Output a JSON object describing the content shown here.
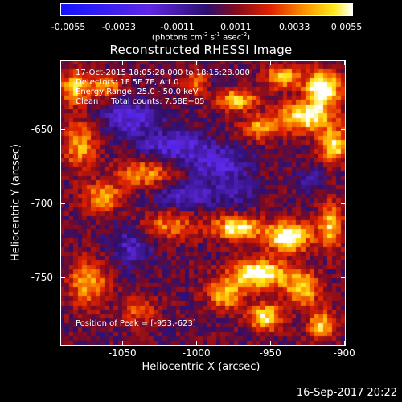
{
  "colorbar": {
    "min": -0.0055,
    "max": 0.0055,
    "ticks": [
      "-0.0055",
      "-0.0033",
      "-0.0011",
      "0.0011",
      "0.0033",
      "0.0055"
    ],
    "units": {
      "pre": "(photons cm",
      "e1": "-2",
      "mid1": " s",
      "e2": "-1",
      "mid2": " asec",
      "e3": "-2",
      "post": ")"
    }
  },
  "title": "Reconstructed RHESSI Image",
  "info_lines": [
    "17-Oct-2015 18:05:28.000 to 18:15:28.000",
    "Detectors: 1F 5F 7F, Att 0",
    "Energy Range: 25.0 - 50.0 keV",
    "Clean     Total counts: 7.58E+05"
  ],
  "peak_text": "Position of Peak = [-953,-623]",
  "footer_timestamp": "16-Sep-2017 20:22",
  "chart_data": {
    "type": "heatmap",
    "title": "Reconstructed RHESSI Image",
    "xlabel": "Heliocentric X (arcsec)",
    "ylabel": "Heliocentric Y (arcsec)",
    "xlim": [
      -1092,
      -899
    ],
    "ylim": [
      -796,
      -603
    ],
    "xticks": [
      -1050,
      -1000,
      -950,
      -900
    ],
    "yticks": [
      -650,
      -700,
      -750
    ],
    "xtick_labels": [
      "-1050",
      "-1000",
      "-950",
      "-900"
    ],
    "ytick_labels": [
      "-650",
      "-700",
      "-750"
    ],
    "colorscale": "red-temperature, blue for negative",
    "grid": false,
    "peak_position": [
      -953,
      -623
    ]
  }
}
